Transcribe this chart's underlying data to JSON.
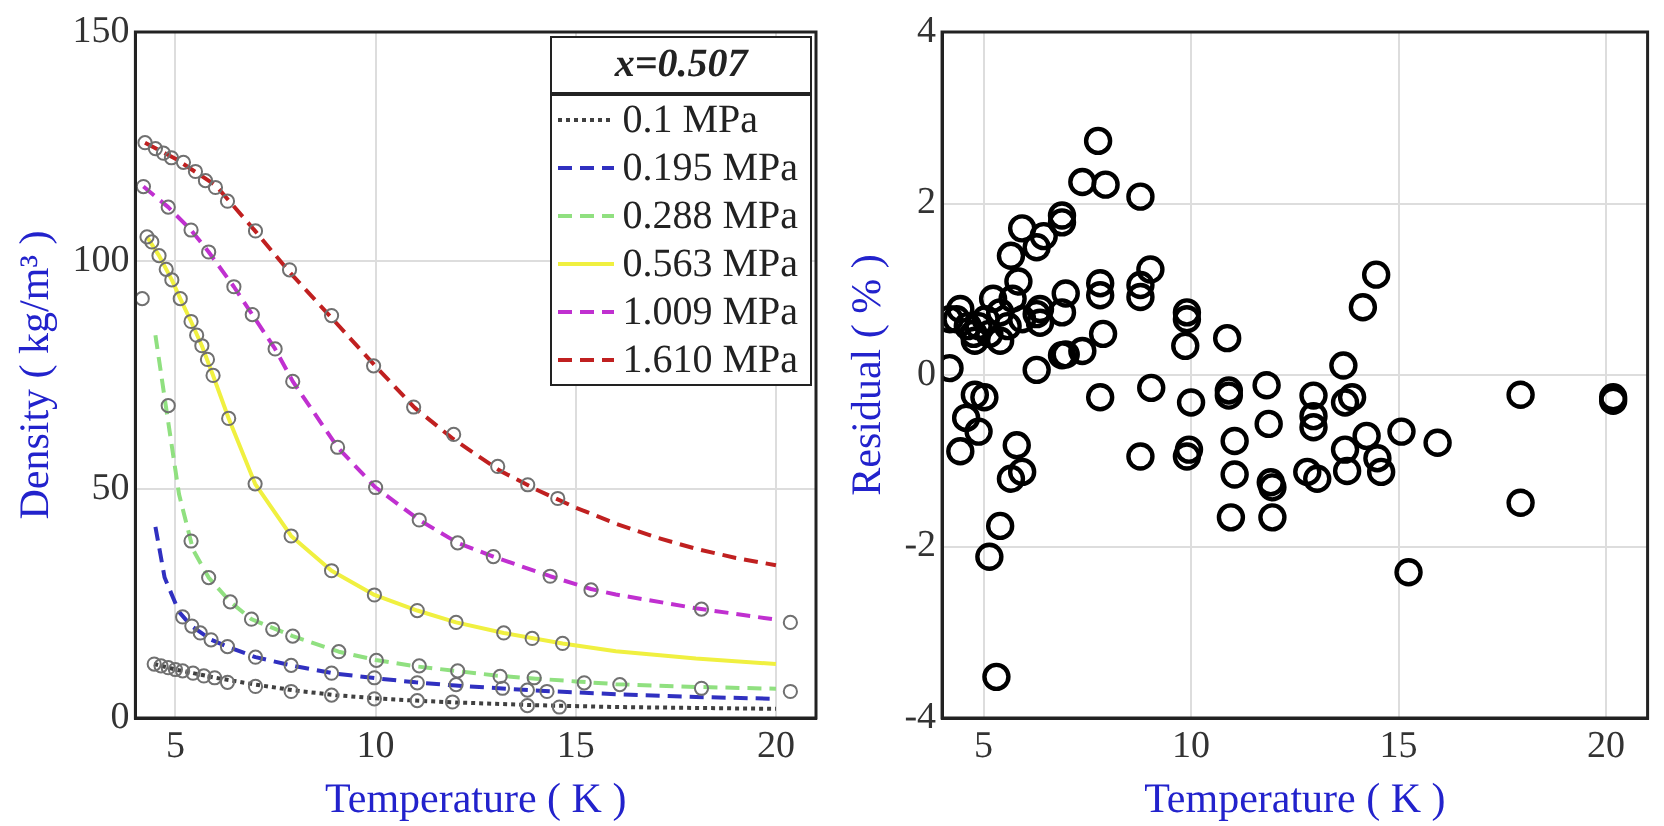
{
  "chart_data": [
    {
      "type": "line",
      "xlabel": "Temperature ( K )",
      "ylabel": "Density ( kg/m³ )",
      "xlim": [
        4,
        21
      ],
      "ylim": [
        0,
        150
      ],
      "xticks": [
        5,
        10,
        15,
        20
      ],
      "yticks": [
        0,
        50,
        100,
        150
      ],
      "grid": true,
      "legend": "top right",
      "legend_title": "x=0.507",
      "series": [
        {
          "name": "0.1 MPa",
          "type": "line",
          "color": "#404040",
          "line_style": "dotted",
          "marker": "none",
          "x": [
            4.47,
            5,
            5.5,
            6,
            7,
            8,
            9,
            10,
            11,
            12,
            14,
            16,
            18,
            20
          ],
          "values": [
            11.8,
            10.6,
            9.7,
            8.8,
            7.3,
            6.0,
            5.0,
            4.3,
            3.8,
            3.4,
            2.8,
            2.4,
            2.2,
            2.0
          ]
        },
        {
          "name": "0.195 MPa",
          "type": "line",
          "color": "#3030c0",
          "line_style": "dashed",
          "marker": "none",
          "x": [
            4.5,
            4.73,
            5.09,
            5.4,
            5.9,
            6.3,
            7,
            8,
            9,
            10,
            11,
            12,
            14,
            16,
            18,
            20
          ],
          "values": [
            41.8,
            30.7,
            23.2,
            20.1,
            17.1,
            15.6,
            13.3,
            11.3,
            9.7,
            8.7,
            7.8,
            7.1,
            6.0,
            5.2,
            4.6,
            4.2
          ]
        },
        {
          "name": "0.288 MPa",
          "type": "line",
          "color": "#90e080",
          "line_style": "dashed",
          "marker": "none",
          "x": [
            4.5,
            4.73,
            5.09,
            5.44,
            5.83,
            6.37,
            6.9,
            7.93,
            9.08,
            10,
            11,
            12,
            13,
            14,
            15,
            16,
            18,
            20
          ],
          "values": [
            83.7,
            70,
            48.9,
            36.8,
            30.7,
            25.4,
            21.6,
            17.9,
            14.5,
            12.7,
            11.3,
            10.3,
            9.3,
            8.6,
            8.0,
            7.4,
            6.8,
            6.4
          ]
        },
        {
          "name": "0.563 MPa",
          "type": "line",
          "color": "#f0f040",
          "line_style": "solid",
          "marker": "none",
          "x": [
            4.29,
            4.59,
            4.91,
            5.12,
            5.39,
            5.66,
            5.94,
            6.33,
            6.99,
            7.89,
            8.9,
            9.97,
            11.04,
            12.01,
            13.2,
            14.67,
            16,
            18,
            20
          ],
          "values": [
            105.2,
            101.1,
            95.8,
            91.7,
            86.7,
            81.4,
            74.9,
            65.5,
            51.2,
            39.8,
            32.2,
            26.9,
            23.5,
            20.9,
            18.6,
            16.3,
            14.6,
            13.0,
            11.8
          ]
        },
        {
          "name": "1.009 MPa",
          "type": "line",
          "color": "#c030d0",
          "line_style": "dashed",
          "marker": "none",
          "x": [
            4.2,
            4.82,
            5.39,
            5.83,
            6.46,
            6.92,
            7.49,
            7.93,
            9.05,
            10,
            11.09,
            12.05,
            12.94,
            14.36,
            15.38,
            16,
            18,
            20
          ],
          "values": [
            116.2,
            111.7,
            106.7,
            101.9,
            94.3,
            88.2,
            80.7,
            73.6,
            59.2,
            50.4,
            43.3,
            38.3,
            35.3,
            31,
            28.2,
            27,
            24,
            21.5
          ]
        },
        {
          "name": "1.610 MPa",
          "type": "line",
          "color": "#c02020",
          "line_style": "dashed",
          "marker": "none",
          "x": [
            4.24,
            5,
            6,
            7,
            7.84,
            8.9,
            10,
            10.98,
            11.94,
            13.08,
            14,
            15,
            16,
            17,
            18,
            19,
            20
          ],
          "values": [
            125.8,
            122.3,
            116.5,
            106.4,
            97.6,
            87.5,
            76.9,
            67.8,
            61,
            54.2,
            50,
            46,
            42.5,
            39.5,
            37,
            35,
            33.4
          ]
        },
        {
          "type": "scatter",
          "color": "#707070",
          "marker": "circle",
          "x": [
            4.47,
            4.64,
            4.82,
            5,
            5.18,
            5.44,
            5.71,
            5.98,
            6.3,
            7,
            7.89,
            8.9,
            9.97,
            11.04,
            11.92,
            13.79,
            14.59
          ],
          "values": [
            11.8,
            11.4,
            11,
            10.6,
            10.3,
            9.8,
            9.2,
            8.8,
            7.8,
            6.9,
            5.8,
            5,
            4.2,
            3.8,
            3.5,
            2.7,
            2.4
          ]
        },
        {
          "type": "scatter",
          "color": "#707070",
          "marker": "circle",
          "x": [
            5.18,
            5.41,
            5.62,
            5.89,
            6.3,
            7,
            7.89,
            8.9,
            9.97,
            11.04,
            12.01,
            13.17,
            13.79,
            14.28
          ],
          "values": [
            22.1,
            20.1,
            18.6,
            17.1,
            15.6,
            13.3,
            11.5,
            9.8,
            8.8,
            7.7,
            7.3,
            6.5,
            6.1,
            5.8
          ]
        },
        {
          "type": "scatter",
          "color": "#707070",
          "marker": "circle",
          "x": [
            4.17,
            4.82,
            5.39,
            5.83,
            6.37,
            6.9,
            7.43,
            7.93,
            9.08,
            10.02,
            11.09,
            12.05,
            13.11,
            13.96,
            15.21,
            16.1,
            18.14,
            20.36
          ],
          "values": [
            91.7,
            68.3,
            38.7,
            30.7,
            25.4,
            21.6,
            19.4,
            17.9,
            14.5,
            12.6,
            11.4,
            10.3,
            9.1,
            8.8,
            7.7,
            7.3,
            6.5,
            5.8
          ]
        },
        {
          "type": "scatter",
          "color": "#707070",
          "marker": "circle",
          "x": [
            4.29,
            4.41,
            4.59,
            4.77,
            4.91,
            5.12,
            5.39,
            5.53,
            5.66,
            5.8,
            5.94,
            6.33,
            6.99,
            7.89,
            8.9,
            9.97,
            11.04,
            12.01,
            13.2,
            13.91,
            14.67
          ],
          "values": [
            105.2,
            104.1,
            101.1,
            98.1,
            95.8,
            91.7,
            86.7,
            83.7,
            81.4,
            78.4,
            74.9,
            65.5,
            51.2,
            39.8,
            32.2,
            26.9,
            23.5,
            20.9,
            18.6,
            17.4,
            16.3
          ]
        },
        {
          "type": "scatter",
          "color": "#707070",
          "marker": "circle",
          "x": [
            4.2,
            4.82,
            5.39,
            5.83,
            6.46,
            6.92,
            7.49,
            7.93,
            9.05,
            10,
            11.09,
            12.05,
            12.94,
            14.36,
            15.38,
            18.14,
            20.36
          ],
          "values": [
            116.2,
            111.7,
            106.7,
            101.9,
            94.3,
            88.2,
            80.7,
            73.6,
            59.2,
            50.4,
            43.3,
            38.3,
            35.3,
            31,
            28,
            23.8,
            20.9
          ]
        },
        {
          "type": "scatter",
          "color": "#707070",
          "marker": "circle",
          "x": [
            4.24,
            4.5,
            4.7,
            4.9,
            5.2,
            5.5,
            5.75,
            6,
            6.3,
            7,
            7.85,
            8.9,
            9.95,
            10.95,
            11.95,
            13.05,
            13.8,
            14.55
          ],
          "values": [
            125.8,
            124.5,
            123.5,
            122.5,
            121.5,
            119.5,
            117.5,
            116,
            113,
            106.5,
            98,
            88,
            77,
            68,
            62,
            55,
            51,
            48
          ]
        }
      ]
    },
    {
      "type": "scatter",
      "xlabel": "Temperature ( K )",
      "ylabel": "Residual ( % )",
      "xlim": [
        4,
        21
      ],
      "ylim": [
        -4,
        4
      ],
      "xticks": [
        5,
        10,
        15,
        20
      ],
      "yticks": [
        -4,
        -2,
        0,
        2,
        4
      ],
      "grid": true,
      "color": "#000000",
      "marker": "circle",
      "x": [
        4.18,
        4.18,
        4.35,
        4.44,
        4.62,
        4.76,
        4.88,
        4.79,
        5.05,
        5.14,
        5.23,
        5.4,
        5.4,
        5.58,
        5.7,
        5.93,
        5.84,
        5.66,
        5.93,
        6.28,
        6.45,
        6.89,
        6.89,
        7.38,
        7.76,
        7.94,
        8.78,
        9.02,
        8.78,
        8.78,
        7.81,
        7.81,
        7.88,
        7.38,
        6.89,
        6.98,
        6.89,
        6.98,
        6.28,
        6.28,
        6.36,
        6.36,
        4.79,
        5.02,
        4.58,
        4.88,
        4.44,
        5.8,
        5.66,
        5.93,
        5.4,
        5.14,
        5.31,
        7.81,
        9.04,
        8.78,
        9.9,
        9.9,
        9.86,
        10,
        9.95,
        9.9,
        10.87,
        10.91,
        10.91,
        11.05,
        11.05,
        10.96,
        11.82,
        11.87,
        11.92,
        11.96,
        11.96,
        12.95,
        12.95,
        12.95,
        12.8,
        13.04,
        13.67,
        13.71,
        13.88,
        13.71,
        13.76,
        14.14,
        14.46,
        14.23,
        14.49,
        14.58,
        15.07,
        15.24,
        15.94,
        17.94,
        17.94,
        20.17,
        20.17
      ],
      "values": [
        0.08,
        0.65,
        0.65,
        0.77,
        0.57,
        0.48,
        0.57,
        0.4,
        0.65,
        0.48,
        0.89,
        0.4,
        0.73,
        0.57,
        0.89,
        0.65,
        1.09,
        1.39,
        1.71,
        1.49,
        1.62,
        1.86,
        1.78,
        2.25,
        2.73,
        2.22,
        2.08,
        1.23,
        1.05,
        0.91,
        1.07,
        0.93,
        0.48,
        0.28,
        0.23,
        0.24,
        0.73,
        0.95,
        0.06,
        0.71,
        0.61,
        0.77,
        -0.23,
        -0.26,
        -0.5,
        -0.66,
        -0.89,
        -0.82,
        -1.21,
        -1.13,
        -1.76,
        -2.12,
        -3.52,
        -0.26,
        -0.15,
        -0.95,
        0.73,
        0.65,
        0.34,
        -0.32,
        -0.87,
        -0.95,
        0.43,
        -0.18,
        -0.24,
        -0.77,
        -1.16,
        -1.66,
        -0.12,
        -0.57,
        -1.25,
        -1.31,
        -1.66,
        -0.24,
        -0.48,
        -0.61,
        -1.13,
        -1.21,
        0.11,
        -0.32,
        -0.26,
        -0.87,
        -1.12,
        0.79,
        1.17,
        -0.71,
        -0.97,
        -1.13,
        -0.66,
        -2.3,
        -0.79,
        -0.23,
        -1.49,
        -0.26,
        -0.3
      ]
    }
  ]
}
